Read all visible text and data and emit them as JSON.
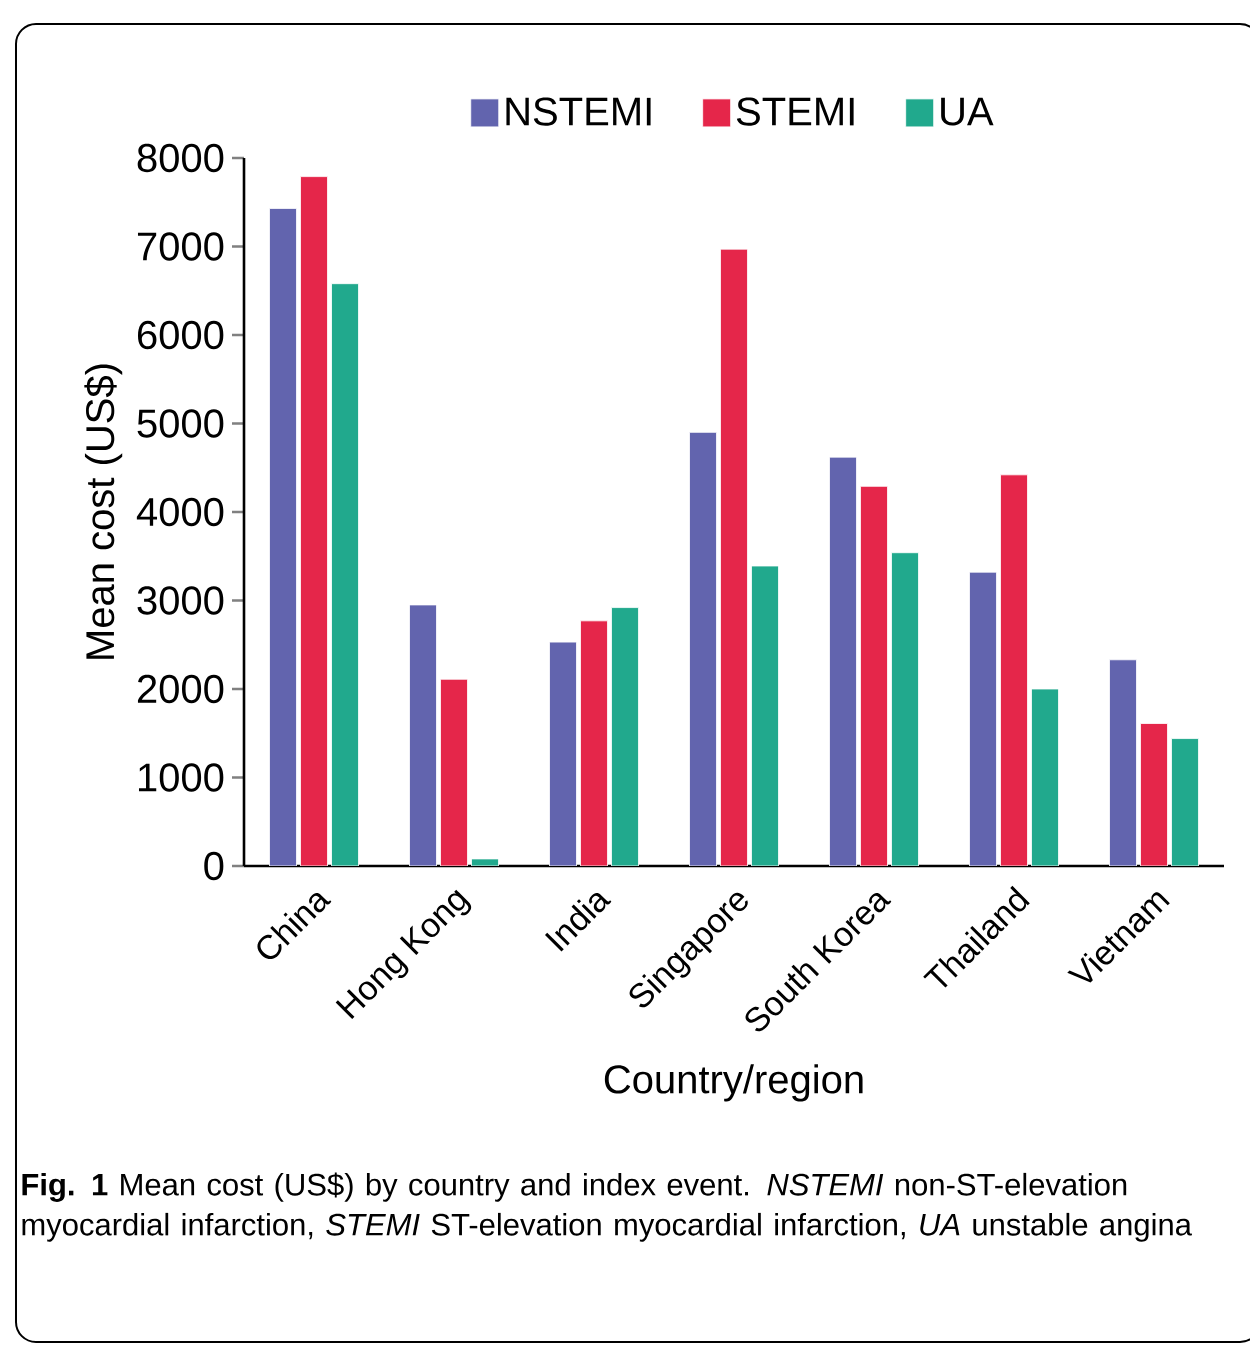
{
  "chart_data": {
    "type": "bar",
    "xlabel": "Country/region",
    "ylabel": "Mean cost (US$)",
    "categories": [
      "China",
      "Hong Kong",
      "India",
      "Singapore",
      "South Korea",
      "Thailand",
      "Vietnam"
    ],
    "series": [
      {
        "name": "NSTEMI",
        "color": "#6264ae",
        "values": [
          7430,
          2950,
          2530,
          4900,
          4620,
          3320,
          2330
        ]
      },
      {
        "name": "STEMI",
        "color": "#e5264a",
        "values": [
          7790,
          2110,
          2770,
          6970,
          4290,
          4420,
          1610
        ]
      },
      {
        "name": "UA",
        "color": "#21a98d",
        "values": [
          6580,
          80,
          2920,
          3390,
          3540,
          2000,
          1440
        ]
      }
    ],
    "ylim": [
      0,
      8000
    ],
    "yticks": [
      0,
      1000,
      2000,
      3000,
      4000,
      5000,
      6000,
      7000,
      8000
    ],
    "grid": false,
    "legend": "top",
    "annotations": [
      "**Fig. 1** Mean cost (US$) by country and index event. *NSTEMI* non-ST-elevation myocardial infarction, *STEMI* ST-elevation myocardial infarction, *UA* unstable angina"
    ]
  }
}
